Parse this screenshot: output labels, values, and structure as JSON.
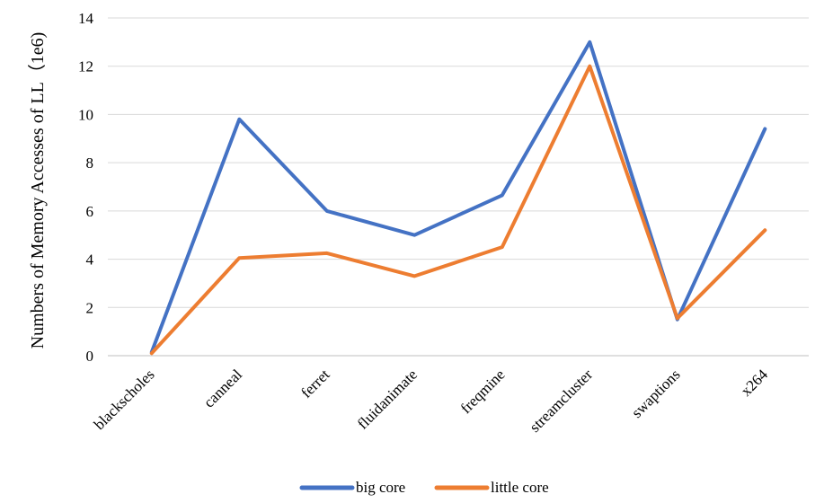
{
  "chart_data": {
    "type": "line",
    "title": "",
    "xlabel": "",
    "ylabel": "Numbers of Memory Accesses of LL（1e6)",
    "categories": [
      "blackscholes",
      "canneal",
      "ferret",
      "fluidanimate",
      "freqmine",
      "streamcluster",
      "swaptions",
      "x264"
    ],
    "ylim": [
      0,
      14
    ],
    "yticks": [
      0,
      2,
      4,
      6,
      8,
      10,
      12,
      14
    ],
    "grid": true,
    "legend_position": "bottom",
    "series": [
      {
        "name": "big core",
        "color": "#4472C4",
        "values": [
          0.15,
          9.8,
          6.0,
          5.0,
          6.65,
          13.0,
          1.5,
          9.4
        ]
      },
      {
        "name": "little core",
        "color": "#ED7D31",
        "values": [
          0.1,
          4.05,
          4.25,
          3.3,
          4.5,
          12.0,
          1.55,
          5.2
        ]
      }
    ]
  }
}
